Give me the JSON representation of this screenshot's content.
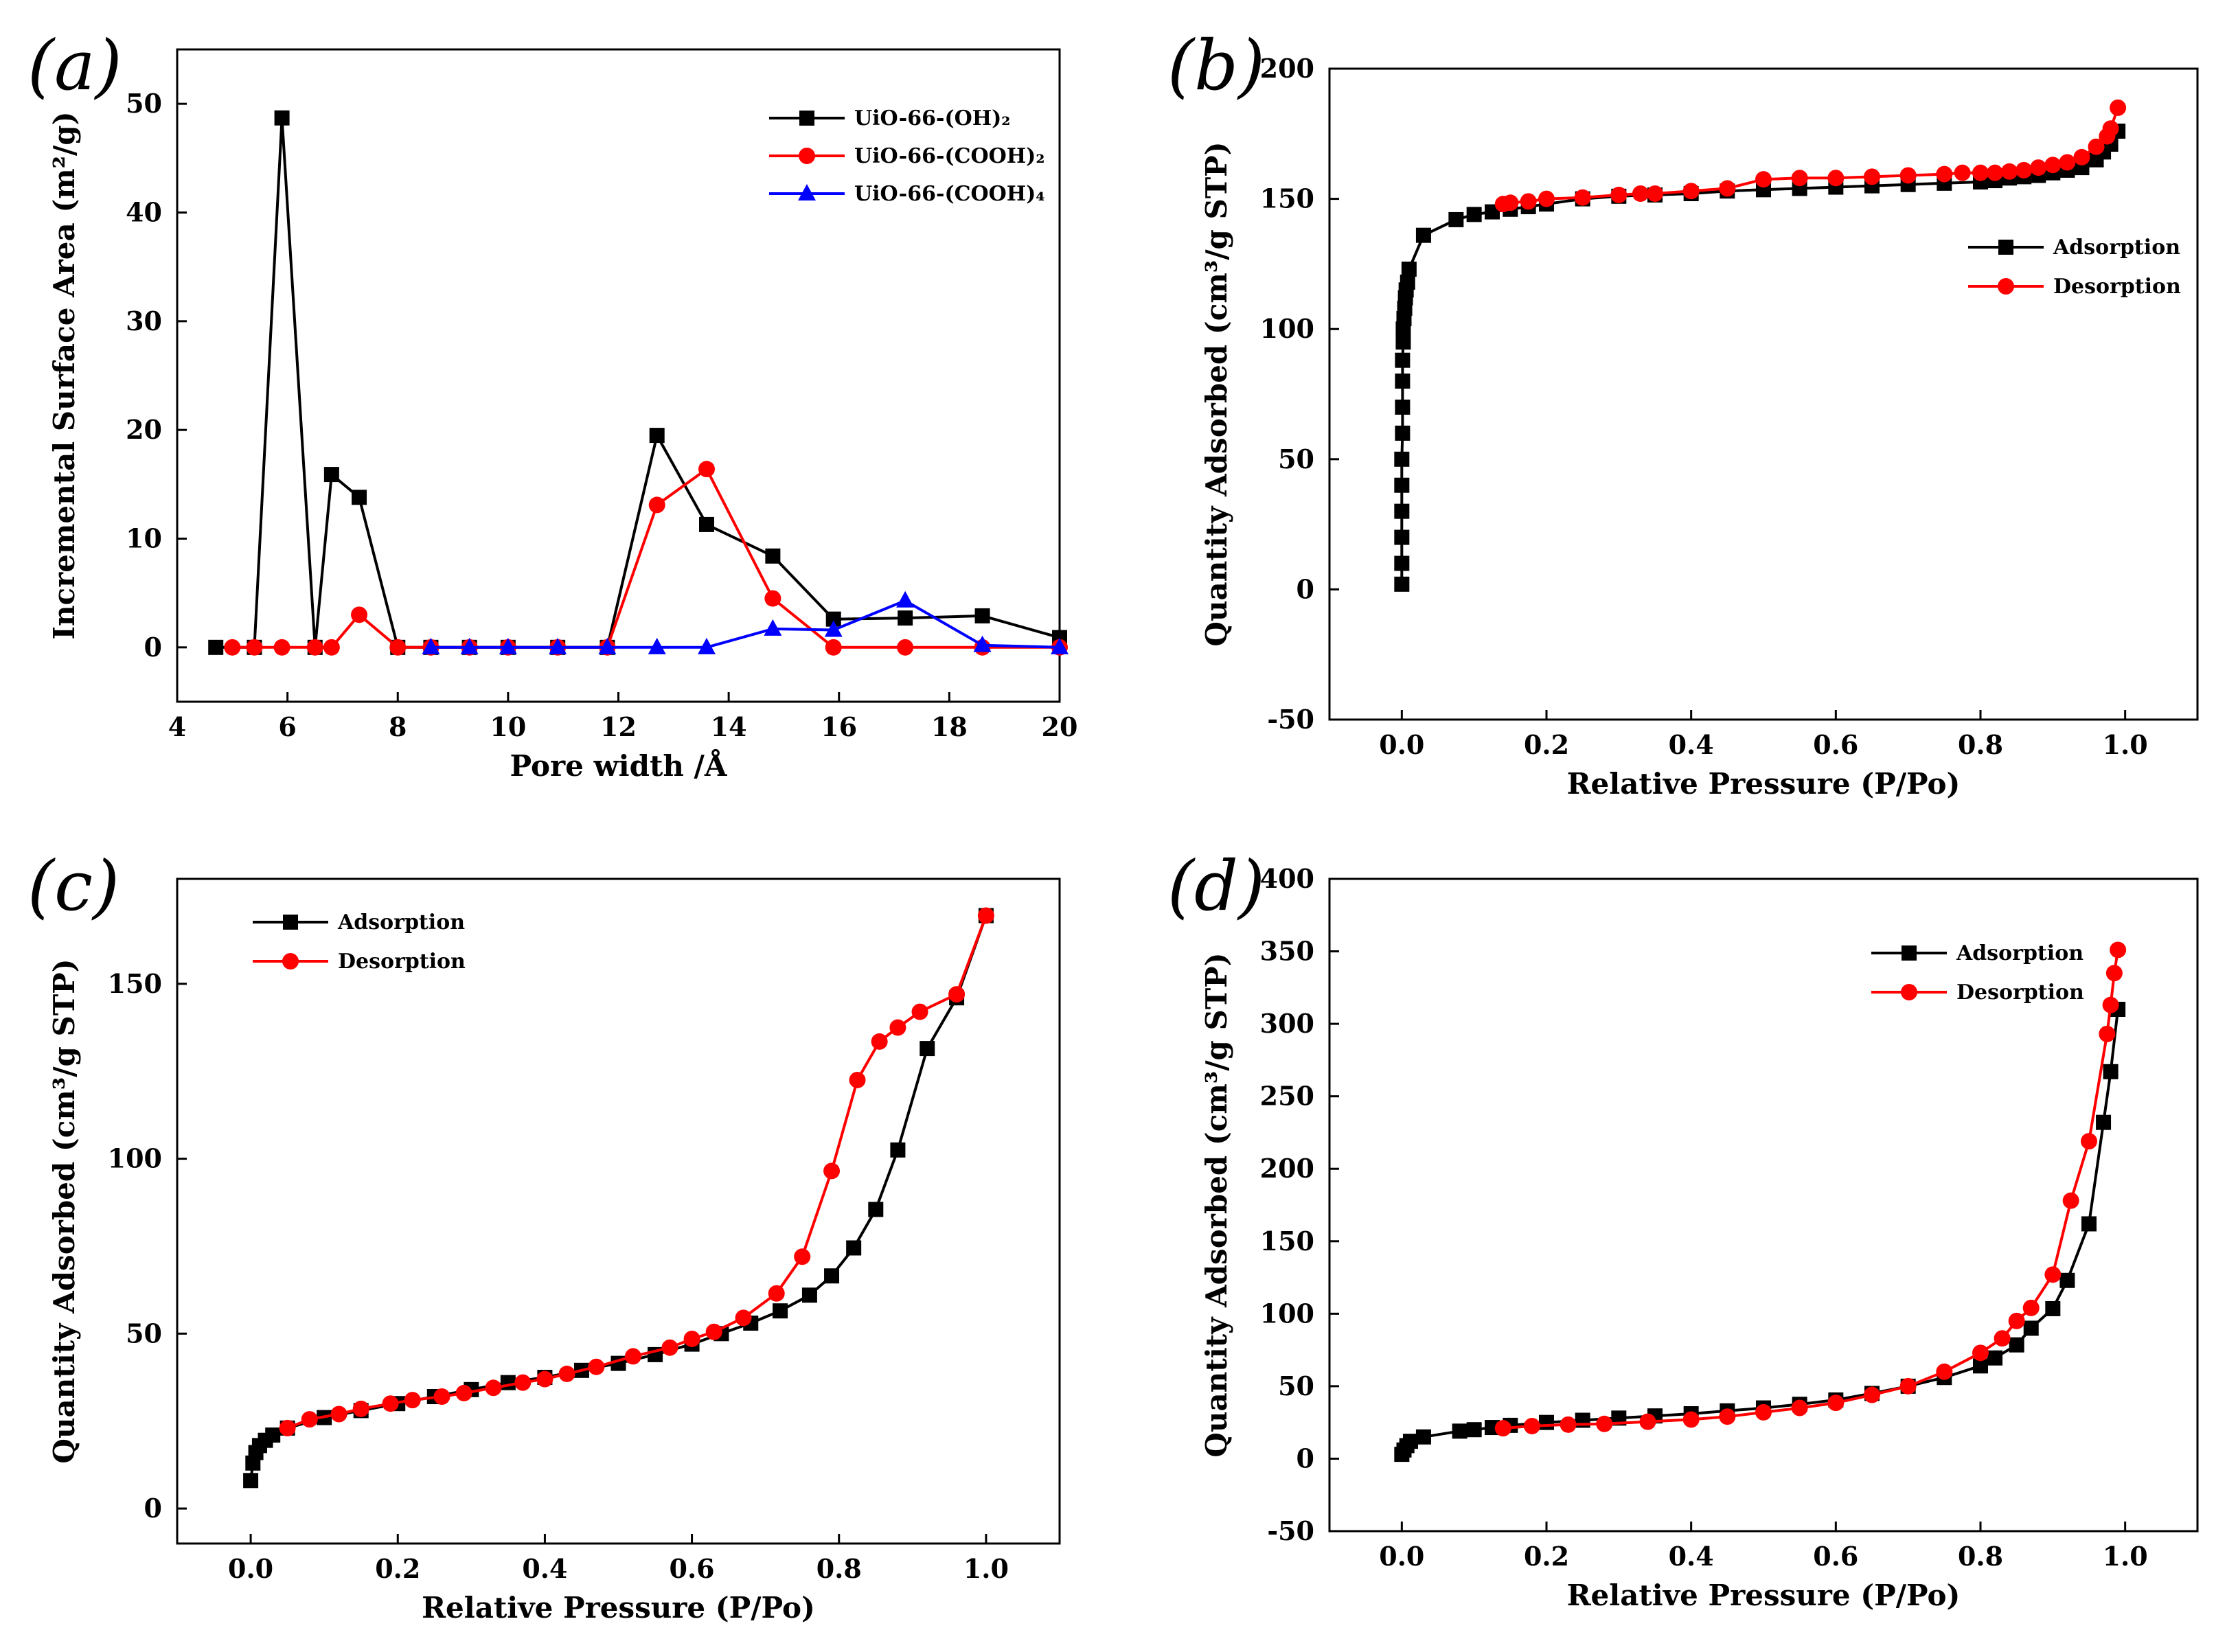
{
  "chart_data": [
    {
      "id": "a",
      "type": "line",
      "panel_label": "(a)",
      "xlabel": "Pore width /Å",
      "ylabel": "Incremental Surface Area (m²/g)",
      "xlim": [
        4,
        20
      ],
      "ylim": [
        -5,
        55
      ],
      "xticks": [
        4,
        6,
        8,
        10,
        12,
        14,
        16,
        18,
        20
      ],
      "yticks": [
        0,
        10,
        20,
        30,
        40,
        50
      ],
      "legend_position": "top-right",
      "series": [
        {
          "name": "UiO-66-(OH)₂",
          "color": "#000000",
          "marker": "square",
          "x": [
            4.7,
            5.4,
            5.9,
            6.5,
            6.8,
            7.3,
            8.0,
            8.6,
            9.3,
            10.0,
            10.9,
            11.8,
            12.7,
            13.6,
            14.8,
            15.9,
            17.2,
            18.6,
            20.0
          ],
          "y": [
            0,
            0,
            48.7,
            0,
            15.9,
            13.8,
            0,
            0,
            0,
            0,
            0,
            0,
            19.5,
            11.3,
            8.4,
            2.6,
            2.7,
            2.9,
            0.9
          ]
        },
        {
          "name": "UiO-66-(COOH)₂",
          "color": "#ff0000",
          "marker": "circle",
          "x": [
            5.0,
            5.4,
            5.9,
            6.5,
            6.8,
            7.3,
            8.0,
            8.6,
            9.3,
            10.0,
            10.9,
            11.8,
            12.7,
            13.6,
            14.8,
            15.9,
            17.2,
            18.6,
            20.0
          ],
          "y": [
            0,
            0,
            0,
            0,
            0,
            3.0,
            0,
            0,
            0,
            0,
            0,
            0,
            13.1,
            16.4,
            4.5,
            0,
            0,
            0,
            0
          ]
        },
        {
          "name": "UiO-66-(COOH)₄",
          "color": "#0000ff",
          "marker": "triangle",
          "x": [
            8.6,
            9.3,
            10.0,
            10.9,
            11.8,
            12.7,
            13.6,
            14.8,
            15.9,
            17.2,
            18.6,
            20.0
          ],
          "y": [
            0,
            0,
            0,
            0,
            0,
            0,
            0,
            1.7,
            1.6,
            4.3,
            0.2,
            0
          ]
        }
      ]
    },
    {
      "id": "b",
      "type": "line",
      "panel_label": "(b)",
      "xlabel": "Relative Pressure (P/Po)",
      "ylabel": "Quantity Adsorbed (cm³/g STP)",
      "xlim": [
        -0.1,
        1.1
      ],
      "ylim": [
        -50,
        200
      ],
      "xticks": [
        0.0,
        0.2,
        0.4,
        0.6,
        0.8,
        1.0
      ],
      "xtick_labels": [
        "0.0",
        "0.2",
        "0.4",
        "0.6",
        "0.8",
        "1.0"
      ],
      "yticks": [
        -50,
        0,
        50,
        100,
        150,
        200
      ],
      "legend_position": "right",
      "series": [
        {
          "name": "Adsorption",
          "color": "#000000",
          "marker": "square",
          "x": [
            0.0,
            0.0,
            0.0,
            0.0,
            0.0,
            0.0,
            0.001,
            0.001,
            0.001,
            0.001,
            0.002,
            0.002,
            0.003,
            0.004,
            0.005,
            0.006,
            0.008,
            0.01,
            0.03,
            0.075,
            0.1,
            0.125,
            0.15,
            0.175,
            0.2,
            0.25,
            0.3,
            0.35,
            0.4,
            0.45,
            0.5,
            0.55,
            0.6,
            0.65,
            0.7,
            0.75,
            0.8,
            0.82,
            0.84,
            0.86,
            0.88,
            0.9,
            0.92,
            0.94,
            0.96,
            0.97,
            0.98,
            0.99
          ],
          "y": [
            2,
            10,
            20,
            30,
            40,
            50,
            60,
            70,
            80,
            88,
            95,
            100,
            104,
            108,
            112,
            115,
            118,
            123,
            136,
            142,
            144,
            145,
            146,
            147,
            148,
            150,
            151,
            151.5,
            152,
            153,
            153.5,
            154,
            154.5,
            155,
            155.5,
            156,
            156.5,
            157,
            158,
            158.5,
            159,
            160,
            161,
            162,
            165,
            168,
            171,
            176
          ]
        },
        {
          "name": "Desorption",
          "color": "#ff0000",
          "marker": "circle",
          "x": [
            0.99,
            0.98,
            0.975,
            0.96,
            0.94,
            0.92,
            0.9,
            0.88,
            0.86,
            0.84,
            0.82,
            0.8,
            0.775,
            0.75,
            0.7,
            0.65,
            0.6,
            0.55,
            0.5,
            0.45,
            0.4,
            0.35,
            0.33,
            0.3,
            0.25,
            0.2,
            0.175,
            0.15,
            0.14
          ],
          "y": [
            185,
            177,
            174,
            170,
            166,
            164,
            163,
            162,
            161,
            160.5,
            160,
            160,
            160,
            159.5,
            159,
            158.5,
            158,
            158,
            157.5,
            154,
            153,
            152,
            152,
            151.5,
            150.5,
            150,
            149,
            148.5,
            148
          ]
        }
      ]
    },
    {
      "id": "c",
      "type": "line",
      "panel_label": "(c)",
      "xlabel": "Relative Pressure (P/Po)",
      "ylabel": "Quantity Adsorbed (cm³/g STP)",
      "xlim": [
        -0.1,
        1.1
      ],
      "ylim": [
        -10,
        180
      ],
      "xticks": [
        0.0,
        0.2,
        0.4,
        0.6,
        0.8,
        1.0
      ],
      "xtick_labels": [
        "0.0",
        "0.2",
        "0.4",
        "0.6",
        "0.8",
        "1.0"
      ],
      "yticks": [
        0,
        50,
        100,
        150
      ],
      "legend_position": "top-left",
      "series": [
        {
          "name": "Adsorption",
          "color": "#000000",
          "marker": "square",
          "x": [
            0.0,
            0.003,
            0.007,
            0.012,
            0.02,
            0.03,
            0.05,
            0.1,
            0.15,
            0.2,
            0.25,
            0.3,
            0.35,
            0.4,
            0.45,
            0.5,
            0.55,
            0.6,
            0.64,
            0.68,
            0.72,
            0.76,
            0.79,
            0.82,
            0.85,
            0.88,
            0.92,
            0.96,
            1.0
          ],
          "y": [
            8,
            13,
            16,
            18,
            19.5,
            21,
            23,
            26,
            28,
            30,
            32,
            34,
            36,
            37.5,
            39.5,
            41.5,
            44,
            47,
            50,
            53,
            56.5,
            61,
            66.5,
            74.5,
            85.5,
            102.5,
            131.5,
            146,
            169.5
          ]
        },
        {
          "name": "Desorption",
          "color": "#ff0000",
          "marker": "circle",
          "x": [
            1.0,
            0.96,
            0.91,
            0.88,
            0.855,
            0.825,
            0.79,
            0.75,
            0.715,
            0.67,
            0.63,
            0.6,
            0.57,
            0.52,
            0.47,
            0.43,
            0.4,
            0.37,
            0.33,
            0.29,
            0.26,
            0.22,
            0.19,
            0.15,
            0.12,
            0.08,
            0.05
          ],
          "y": [
            169.5,
            147,
            142,
            137.5,
            133.5,
            122.5,
            96.5,
            72,
            61.5,
            54.5,
            50.5,
            48.5,
            46,
            43.5,
            40.5,
            38.5,
            37,
            36,
            34.5,
            33,
            32,
            31,
            30,
            28.5,
            27,
            25.5,
            23
          ]
        }
      ]
    },
    {
      "id": "d",
      "type": "line",
      "panel_label": "(d)",
      "xlabel": "Relative Pressure (P/Po)",
      "ylabel": "Quantity Adsorbed (cm³/g STP)",
      "xlim": [
        -0.1,
        1.1
      ],
      "ylim": [
        -50,
        400
      ],
      "xticks": [
        0.0,
        0.2,
        0.4,
        0.6,
        0.8,
        1.0
      ],
      "xtick_labels": [
        "0.0",
        "0.2",
        "0.4",
        "0.6",
        "0.8",
        "1.0"
      ],
      "yticks": [
        -50,
        0,
        50,
        100,
        150,
        200,
        250,
        300,
        350,
        400
      ],
      "legend_position": "top-right",
      "series": [
        {
          "name": "Adsorption",
          "color": "#000000",
          "marker": "square",
          "x": [
            0.0,
            0.003,
            0.007,
            0.012,
            0.03,
            0.08,
            0.1,
            0.125,
            0.15,
            0.2,
            0.25,
            0.3,
            0.35,
            0.4,
            0.45,
            0.5,
            0.55,
            0.6,
            0.65,
            0.7,
            0.75,
            0.8,
            0.82,
            0.85,
            0.87,
            0.9,
            0.92,
            0.95,
            0.97,
            0.98,
            0.99
          ],
          "y": [
            3,
            6,
            9,
            12,
            15,
            19,
            20,
            21.5,
            23,
            25,
            26.5,
            28,
            29.5,
            31,
            33,
            35,
            37.5,
            40.5,
            45,
            50,
            56,
            64,
            69.5,
            78.5,
            90,
            103.5,
            123,
            162,
            232,
            267,
            310
          ]
        },
        {
          "name": "Desorption",
          "color": "#ff0000",
          "marker": "circle",
          "x": [
            0.99,
            0.985,
            0.98,
            0.975,
            0.95,
            0.925,
            0.9,
            0.87,
            0.85,
            0.83,
            0.8,
            0.75,
            0.7,
            0.65,
            0.6,
            0.55,
            0.5,
            0.45,
            0.4,
            0.34,
            0.28,
            0.23,
            0.18,
            0.14
          ],
          "y": [
            351,
            335,
            313,
            293,
            219,
            178,
            127,
            104,
            95,
            83,
            73,
            60,
            50,
            44,
            38.5,
            35,
            32,
            29,
            27,
            25.5,
            24,
            23.5,
            22.5,
            21
          ]
        }
      ]
    }
  ]
}
